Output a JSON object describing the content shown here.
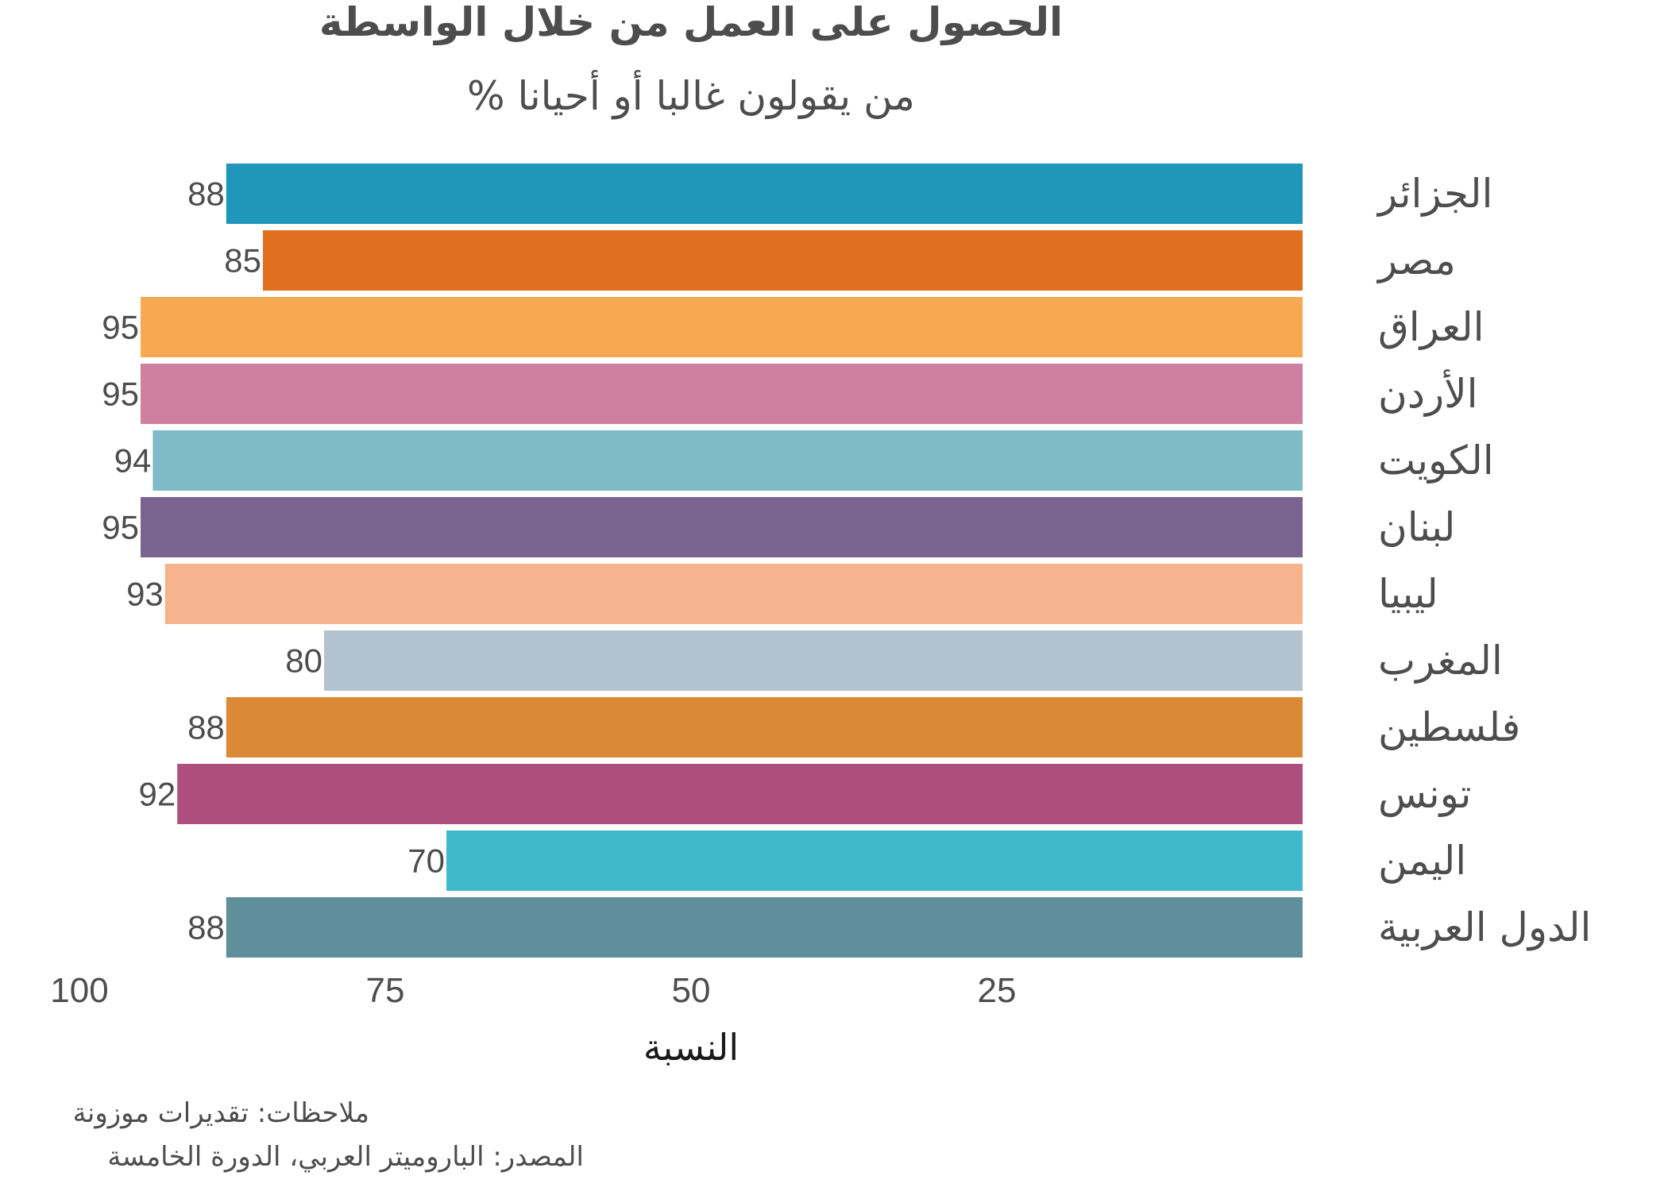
{
  "chart_data": {
    "type": "bar",
    "orientation": "horizontal",
    "title": "الحصول على العمل من خلال الواسطة",
    "subtitle": "% من يقولون غالبا أو أحيانا",
    "xlabel": "النسبة",
    "ylabel": "",
    "xlim": [
      0,
      100
    ],
    "x_reversed": true,
    "x_ticks": [
      100,
      75,
      50,
      25
    ],
    "grid": false,
    "legend": "none",
    "categories": [
      "الجزائر",
      "مصر",
      "العراق",
      "الأردن",
      "الكويت",
      "لبنان",
      "ليبيا",
      "المغرب",
      "فلسطين",
      "تونس",
      "اليمن",
      "الدول العربية"
    ],
    "values": [
      88,
      85,
      95,
      95,
      94,
      95,
      93,
      80,
      88,
      92,
      70,
      88
    ],
    "colors": [
      "#2196bb",
      "#e07020",
      "#f9a852",
      "#cf7fa0",
      "#7fbac8",
      "#78648e",
      "#f5b48e",
      "#b2c3cf",
      "#da8a37",
      "#ad4e7d",
      "#40b8cc",
      "#5f8f9a"
    ],
    "notes": "ملاحظات: تقديرات موزونة",
    "source": "المصدر: الباروميتر العربي، الدورة الخامسة"
  }
}
